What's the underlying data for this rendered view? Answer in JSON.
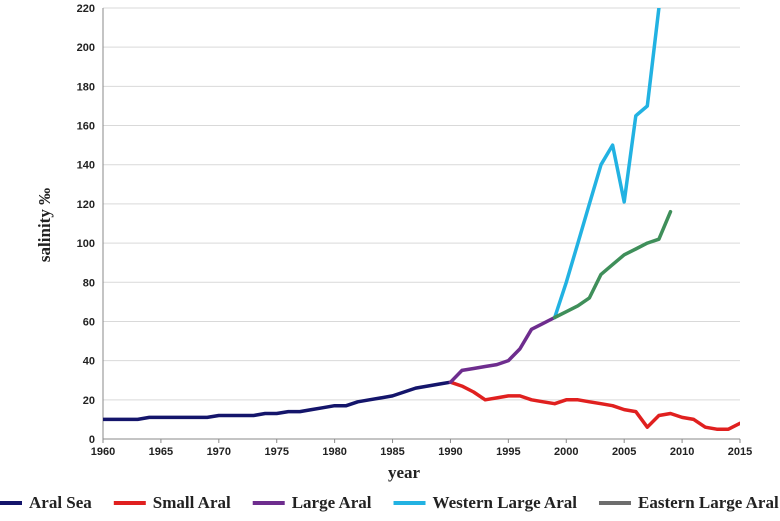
{
  "chart_data": {
    "type": "line",
    "title": "",
    "xlabel": "year",
    "ylabel": "salinity ‰",
    "xlim": [
      1960,
      2015
    ],
    "ylim": [
      0,
      220
    ],
    "xticks": [
      1960,
      1965,
      1970,
      1975,
      1980,
      1985,
      1990,
      1995,
      2000,
      2005,
      2010,
      2015
    ],
    "yticks": [
      0,
      20,
      40,
      60,
      80,
      100,
      120,
      140,
      160,
      180,
      200,
      220
    ],
    "grid": true,
    "legend_position": "bottom",
    "series": [
      {
        "name": "Aral Sea",
        "color": "#14156b",
        "points": [
          [
            1960,
            10
          ],
          [
            1961,
            10
          ],
          [
            1962,
            10
          ],
          [
            1963,
            10
          ],
          [
            1964,
            11
          ],
          [
            1965,
            11
          ],
          [
            1966,
            11
          ],
          [
            1967,
            11
          ],
          [
            1968,
            11
          ],
          [
            1969,
            11
          ],
          [
            1970,
            12
          ],
          [
            1971,
            12
          ],
          [
            1972,
            12
          ],
          [
            1973,
            12
          ],
          [
            1974,
            13
          ],
          [
            1975,
            13
          ],
          [
            1976,
            14
          ],
          [
            1977,
            14
          ],
          [
            1978,
            15
          ],
          [
            1979,
            16
          ],
          [
            1980,
            17
          ],
          [
            1981,
            17
          ],
          [
            1982,
            19
          ],
          [
            1983,
            20
          ],
          [
            1984,
            21
          ],
          [
            1985,
            22
          ],
          [
            1986,
            24
          ],
          [
            1987,
            26
          ],
          [
            1988,
            27
          ],
          [
            1989,
            28
          ],
          [
            1990,
            29
          ]
        ]
      },
      {
        "name": "Small Aral",
        "color": "#e0201f",
        "points": [
          [
            1990,
            29
          ],
          [
            1991,
            27
          ],
          [
            1992,
            24
          ],
          [
            1993,
            20
          ],
          [
            1994,
            21
          ],
          [
            1995,
            22
          ],
          [
            1996,
            22
          ],
          [
            1997,
            20
          ],
          [
            1998,
            19
          ],
          [
            1999,
            18
          ],
          [
            2000,
            20
          ],
          [
            2001,
            20
          ],
          [
            2002,
            19
          ],
          [
            2003,
            18
          ],
          [
            2004,
            17
          ],
          [
            2005,
            15
          ],
          [
            2006,
            14
          ],
          [
            2007,
            6
          ],
          [
            2008,
            12
          ],
          [
            2009,
            13
          ],
          [
            2010,
            11
          ],
          [
            2011,
            10
          ],
          [
            2012,
            6
          ],
          [
            2013,
            5
          ],
          [
            2014,
            5
          ],
          [
            2015,
            8
          ]
        ]
      },
      {
        "name": "Large Aral",
        "color": "#6e2d8e",
        "points": [
          [
            1990,
            29
          ],
          [
            1991,
            35
          ],
          [
            1992,
            36
          ],
          [
            1993,
            37
          ],
          [
            1994,
            38
          ],
          [
            1995,
            40
          ],
          [
            1996,
            46
          ],
          [
            1997,
            56
          ],
          [
            1998,
            59
          ],
          [
            1999,
            62
          ]
        ]
      },
      {
        "name": "Western Large Aral",
        "color": "#22b2e2",
        "points": [
          [
            1999,
            62
          ],
          [
            2000,
            80
          ],
          [
            2001,
            100
          ],
          [
            2002,
            120
          ],
          [
            2003,
            140
          ],
          [
            2004,
            150
          ],
          [
            2005,
            121
          ],
          [
            2006,
            165
          ],
          [
            2007,
            170
          ],
          [
            2008,
            220
          ]
        ]
      },
      {
        "name": "Eastern Large Aral",
        "color": "#3f8f5a",
        "legend_color": "#6d6d6d",
        "points": [
          [
            1999,
            62
          ],
          [
            2000,
            65
          ],
          [
            2001,
            68
          ],
          [
            2002,
            72
          ],
          [
            2003,
            84
          ],
          [
            2004,
            89
          ],
          [
            2005,
            94
          ],
          [
            2006,
            97
          ],
          [
            2007,
            100
          ],
          [
            2008,
            102
          ],
          [
            2009,
            116
          ]
        ]
      }
    ]
  }
}
